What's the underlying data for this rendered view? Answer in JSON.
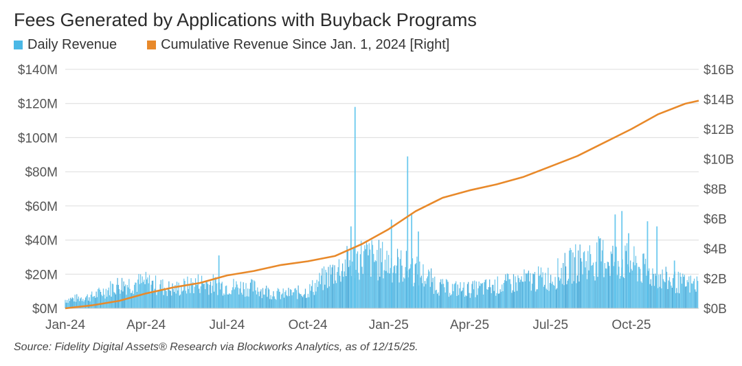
{
  "title": "Fees Generated by Applications with Buyback Programs",
  "source": "Source: Fidelity Digital Assets® Research via Blockworks Analytics, as of 12/15/25.",
  "chart_data": {
    "type": "bar+line",
    "title": "Fees Generated by Applications with Buyback Programs",
    "x_ticks": [
      "Jan-24",
      "Apr-24",
      "Jul-24",
      "Oct-24",
      "Jan-25",
      "Apr-25",
      "Jul-25",
      "Oct-25"
    ],
    "x_range_months": [
      0,
      23.5
    ],
    "left_axis": {
      "ticks": [
        "$0M",
        "$20M",
        "$40M",
        "$60M",
        "$80M",
        "$100M",
        "$120M",
        "$140M"
      ],
      "range": [
        0,
        140
      ],
      "unit": "$M"
    },
    "right_axis": {
      "ticks": [
        "$0B",
        "$2B",
        "$4B",
        "$6B",
        "$8B",
        "$10B",
        "$12B",
        "$14B",
        "$16B"
      ],
      "range": [
        0,
        16
      ],
      "unit": "$B"
    },
    "series": [
      {
        "name": "Daily Revenue",
        "axis": "left",
        "kind": "bar",
        "color": "#4ab8e6",
        "approx_daily_level_by_month": [
          {
            "month": 0,
            "level": 5
          },
          {
            "month": 1,
            "level": 7
          },
          {
            "month": 2,
            "level": 14
          },
          {
            "month": 3,
            "level": 15
          },
          {
            "month": 4,
            "level": 11
          },
          {
            "month": 5,
            "level": 15
          },
          {
            "month": 6,
            "level": 13
          },
          {
            "month": 7,
            "level": 12
          },
          {
            "month": 8,
            "level": 8
          },
          {
            "month": 9,
            "level": 10
          },
          {
            "month": 10,
            "level": 22
          },
          {
            "month": 11,
            "level": 30
          },
          {
            "month": 12,
            "level": 27
          },
          {
            "month": 13,
            "level": 22
          },
          {
            "month": 14,
            "level": 12
          },
          {
            "month": 15,
            "level": 11
          },
          {
            "month": 16,
            "level": 13
          },
          {
            "month": 17,
            "level": 16
          },
          {
            "month": 18,
            "level": 18
          },
          {
            "month": 19,
            "level": 27
          },
          {
            "month": 20,
            "level": 30
          },
          {
            "month": 21,
            "level": 26
          },
          {
            "month": 22,
            "level": 18
          },
          {
            "month": 23,
            "level": 14
          }
        ],
        "spikes": [
          {
            "month": 5.7,
            "value": 31
          },
          {
            "month": 9.3,
            "value": 8
          },
          {
            "month": 10.6,
            "value": 48
          },
          {
            "month": 10.75,
            "value": 118
          },
          {
            "month": 12.1,
            "value": 52
          },
          {
            "month": 12.7,
            "value": 89
          },
          {
            "month": 12.85,
            "value": 55
          },
          {
            "month": 13.1,
            "value": 45
          },
          {
            "month": 20.4,
            "value": 55
          },
          {
            "month": 20.65,
            "value": 57
          },
          {
            "month": 20.9,
            "value": 44
          },
          {
            "month": 21.6,
            "value": 51
          },
          {
            "month": 21.95,
            "value": 48
          },
          {
            "month": 22.6,
            "value": 28
          }
        ]
      },
      {
        "name": "Cumulative Revenue Since Jan. 1, 2024 [Right]",
        "axis": "right",
        "kind": "line",
        "color": "#e8892a",
        "points": [
          {
            "month": 0,
            "value": 0.0
          },
          {
            "month": 1,
            "value": 0.2
          },
          {
            "month": 2,
            "value": 0.5
          },
          {
            "month": 3,
            "value": 1.0
          },
          {
            "month": 4,
            "value": 1.4
          },
          {
            "month": 5,
            "value": 1.7
          },
          {
            "month": 6,
            "value": 2.2
          },
          {
            "month": 7,
            "value": 2.5
          },
          {
            "month": 8,
            "value": 2.9
          },
          {
            "month": 9,
            "value": 3.15
          },
          {
            "month": 10,
            "value": 3.5
          },
          {
            "month": 11,
            "value": 4.3
          },
          {
            "month": 12,
            "value": 5.3
          },
          {
            "month": 13,
            "value": 6.5
          },
          {
            "month": 14,
            "value": 7.4
          },
          {
            "month": 15,
            "value": 7.9
          },
          {
            "month": 16,
            "value": 8.3
          },
          {
            "month": 17,
            "value": 8.8
          },
          {
            "month": 18,
            "value": 9.5
          },
          {
            "month": 19,
            "value": 10.2
          },
          {
            "month": 20,
            "value": 11.1
          },
          {
            "month": 21,
            "value": 12.0
          },
          {
            "month": 22,
            "value": 13.0
          },
          {
            "month": 23,
            "value": 13.7
          },
          {
            "month": 23.5,
            "value": 13.9
          }
        ]
      }
    ],
    "legend_position": "top-left",
    "grid": true
  }
}
